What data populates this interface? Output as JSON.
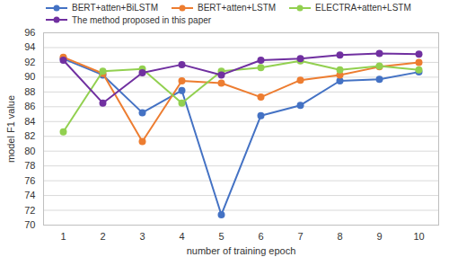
{
  "chart_data": {
    "type": "line",
    "x_label": "number of training epoch",
    "y_label": "model F1 value",
    "x": [
      1,
      2,
      3,
      4,
      5,
      6,
      7,
      8,
      9,
      10
    ],
    "xlim": [
      0.5,
      10.5
    ],
    "xticks": [
      1,
      2,
      3,
      4,
      5,
      6,
      7,
      8,
      9,
      10
    ],
    "ylim": [
      70,
      96
    ],
    "yticks": [
      70,
      72,
      74,
      76,
      78,
      80,
      82,
      84,
      86,
      88,
      90,
      92,
      94,
      96
    ],
    "grid": true,
    "legend": "top",
    "marker": "circle",
    "line_style": "solid",
    "series": [
      {
        "name": "BERT+atten+BiLSTM",
        "color": "#4472c4",
        "values": [
          92.5,
          90.3,
          85.2,
          88.2,
          71.4,
          84.8,
          86.2,
          89.5,
          89.7,
          90.7
        ]
      },
      {
        "name": "BERT+atten+LSTM",
        "color": "#ed7d31",
        "values": [
          92.7,
          90.5,
          81.3,
          89.5,
          89.2,
          87.3,
          89.6,
          90.3,
          91.4,
          92.0
        ]
      },
      {
        "name": "ELECTRA+atten+LSTM",
        "color": "#92d050",
        "values": [
          82.6,
          90.8,
          91.1,
          86.5,
          90.8,
          91.3,
          92.2,
          91.0,
          91.5,
          91.0
        ]
      },
      {
        "name": "The method proposed in this paper",
        "color": "#7030a0",
        "values": [
          92.3,
          86.5,
          90.6,
          91.7,
          90.3,
          92.3,
          92.5,
          93.0,
          93.2,
          93.1
        ]
      }
    ]
  }
}
